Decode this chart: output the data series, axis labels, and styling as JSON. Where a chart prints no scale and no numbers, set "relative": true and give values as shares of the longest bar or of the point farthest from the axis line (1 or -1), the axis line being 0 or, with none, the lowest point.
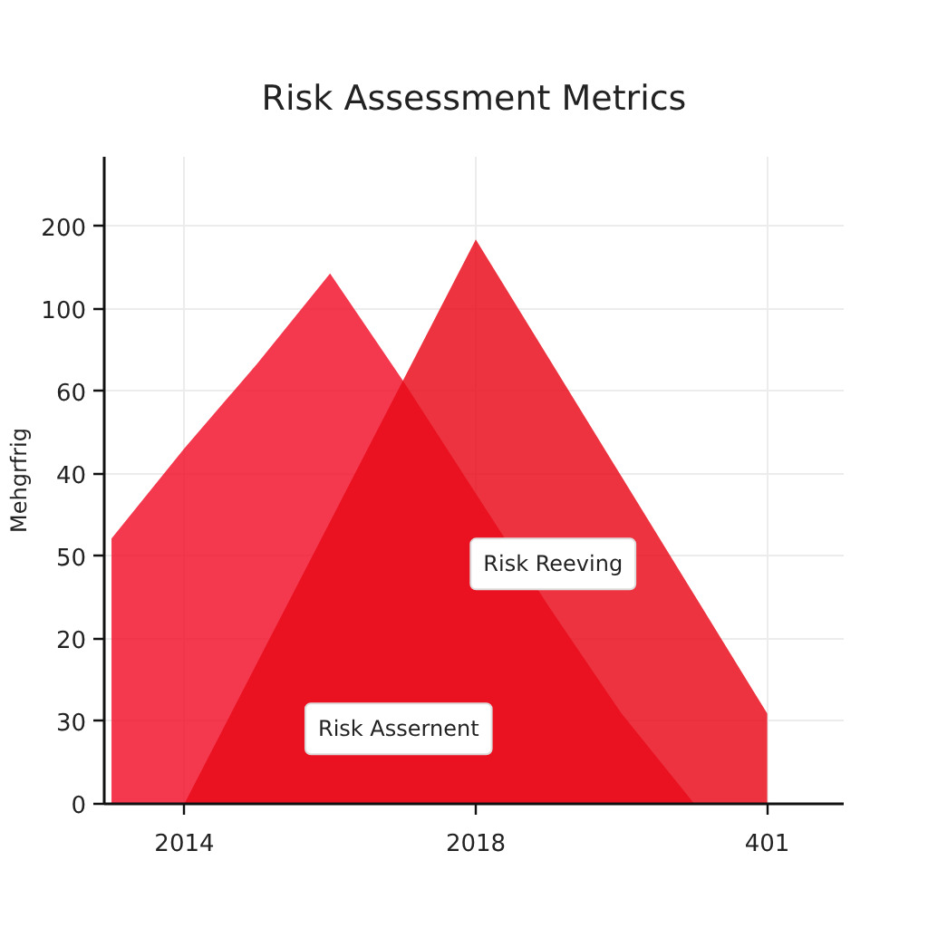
{
  "chart_data": {
    "type": "area",
    "title": "Risk Assessment Metrics",
    "ylabel": "Mehgrfrig",
    "categories": [
      null,
      "2014",
      null,
      null,
      null,
      "2018",
      null,
      null,
      null,
      "401"
    ],
    "relative": true,
    "grid": true,
    "series": [
      {
        "color": "#f2102a",
        "values": [
          0.47,
          0.63,
          0.78,
          0.94,
          0.75,
          0.55,
          0.35,
          0.16,
          0,
          null
        ]
      },
      {
        "color": "#e80a18",
        "values": [
          null,
          0,
          0.25,
          0.5,
          0.75,
          1,
          0.79,
          0.58,
          0.37,
          0.16
        ]
      }
    ],
    "annotations": [
      "200",
      "100",
      "60",
      "40",
      "50",
      "20",
      "30",
      "0",
      "Risk Reeving",
      "Risk Assernent"
    ]
  }
}
